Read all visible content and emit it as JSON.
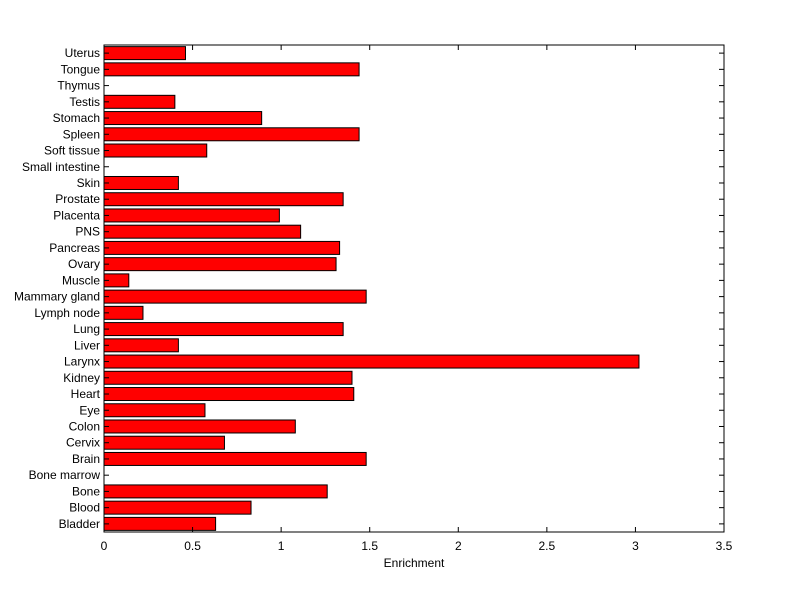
{
  "chart_data": {
    "type": "bar",
    "orientation": "horizontal",
    "title": "",
    "xlabel": "Enrichment",
    "ylabel": "",
    "xlim": [
      0,
      3.5
    ],
    "xticks": [
      0,
      0.5,
      1,
      1.5,
      2,
      2.5,
      3,
      3.5
    ],
    "xtick_labels": [
      "0",
      "0.5",
      "1",
      "1.5",
      "2",
      "2.5",
      "3",
      "3.5"
    ],
    "grid": false,
    "bar_color": "#ff0000",
    "bar_edge_color": "#000000",
    "categories": [
      "Uterus",
      "Tongue",
      "Thymus",
      "Testis",
      "Stomach",
      "Spleen",
      "Soft tissue",
      "Small intestine",
      "Skin",
      "Prostate",
      "Placenta",
      "PNS",
      "Pancreas",
      "Ovary",
      "Muscle",
      "Mammary gland",
      "Lymph node",
      "Lung",
      "Liver",
      "Larynx",
      "Kidney",
      "Heart",
      "Eye",
      "Colon",
      "Cervix",
      "Brain",
      "Bone marrow",
      "Bone",
      "Blood",
      "Bladder"
    ],
    "values": [
      0.46,
      1.44,
      0.0,
      0.4,
      0.89,
      1.44,
      0.58,
      0.0,
      0.42,
      1.35,
      0.99,
      1.11,
      1.33,
      1.31,
      0.14,
      1.48,
      0.22,
      1.35,
      0.42,
      3.02,
      1.4,
      1.41,
      0.57,
      1.08,
      0.68,
      1.48,
      0.0,
      1.26,
      0.83,
      0.63
    ]
  }
}
